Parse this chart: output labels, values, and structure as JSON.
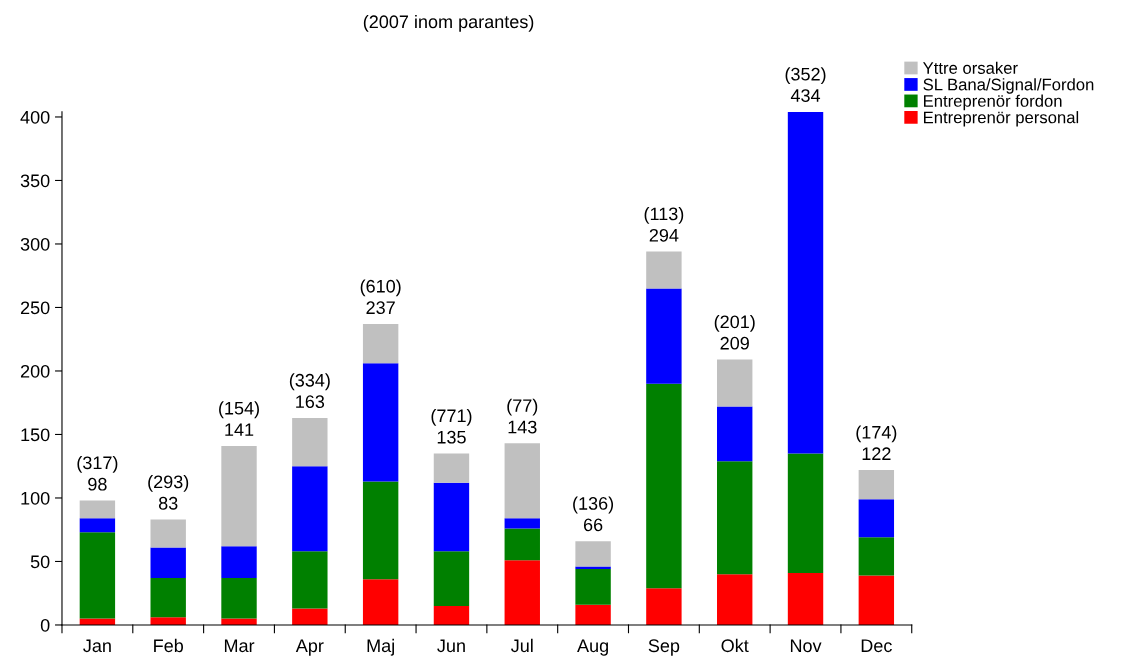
{
  "chart_data": {
    "type": "bar",
    "stacked": true,
    "title": "(2007 inom parantes)",
    "categories": [
      "Jan",
      "Feb",
      "Mar",
      "Apr",
      "Maj",
      "Jun",
      "Jul",
      "Aug",
      "Sep",
      "Okt",
      "Nov",
      "Dec"
    ],
    "series": [
      {
        "name": "Entreprenör personal",
        "color": "#ff0000",
        "values": [
          5,
          6,
          5,
          13,
          36,
          15,
          51,
          16,
          29,
          40,
          41,
          39
        ]
      },
      {
        "name": "Entreprenör fordon",
        "color": "#008000",
        "values": [
          68,
          31,
          32,
          45,
          77,
          43,
          25,
          28,
          161,
          89,
          94,
          30
        ]
      },
      {
        "name": "SL Bana/Signal/Fordon",
        "color": "#0000ff",
        "values": [
          11,
          24,
          25,
          67,
          93,
          54,
          8,
          2,
          75,
          43,
          269,
          30
        ]
      },
      {
        "name": "Yttre orsaker",
        "color": "#c0c0c0",
        "values": [
          14,
          22,
          79,
          38,
          31,
          23,
          59,
          20,
          29,
          37,
          null,
          23
        ]
      }
    ],
    "totals": [
      "(317)\n98",
      "(293)\n83",
      "(154)\n141",
      "(334)\n163",
      "(610)\n237",
      "(771)\n135",
      "(77)\n143",
      "(136)\n66",
      "(113)\n294",
      "(201)\n209",
      "(352)\n434",
      "(174)\n122"
    ],
    "ylim": [
      0,
      404
    ],
    "yticks": [
      0,
      50,
      100,
      150,
      200,
      250,
      300,
      350,
      400
    ],
    "grid": false,
    "legend": "top right"
  }
}
